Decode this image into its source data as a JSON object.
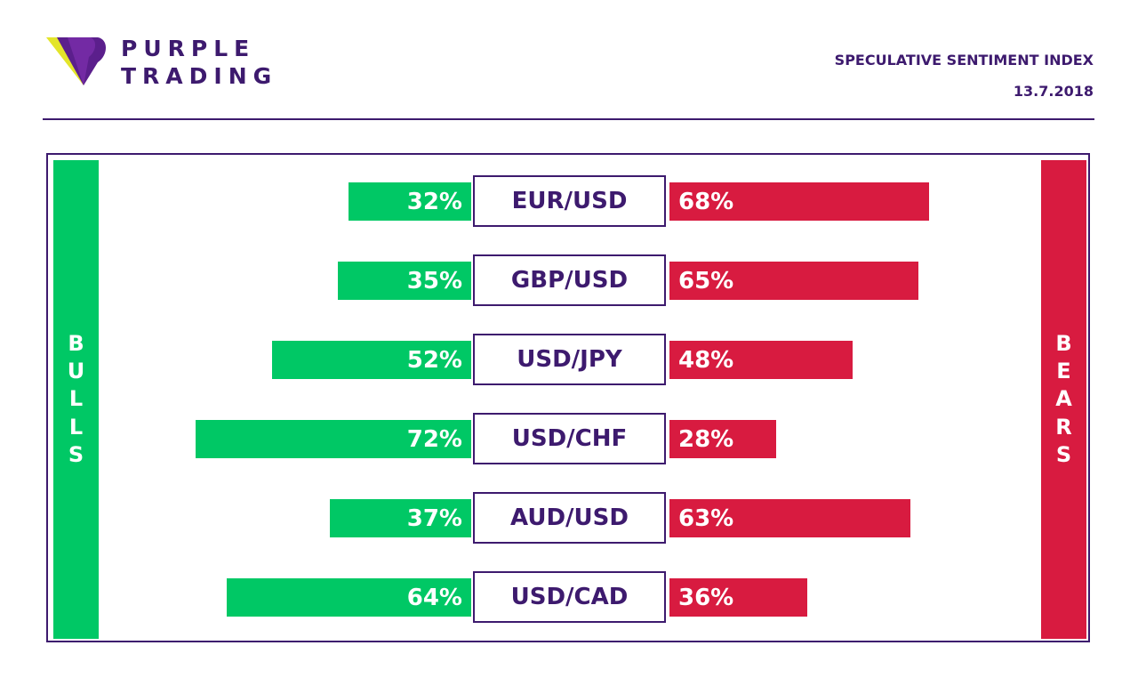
{
  "brand": {
    "line1": "PURPLE",
    "line2": "TRADING"
  },
  "header": {
    "title": "SPECULATIVE SENTIMENT INDEX",
    "date": "13.7.2018"
  },
  "labels": {
    "bulls": "BULLS",
    "bears": "BEARS"
  },
  "colors": {
    "purple": "#3d1a6e",
    "green": "#00c865",
    "red": "#d81b40",
    "yellow": "#e3e52a"
  },
  "chart_data": {
    "type": "bar",
    "title": "SPECULATIVE SENTIMENT INDEX",
    "categories": [
      "EUR/USD",
      "GBP/USD",
      "USD/JPY",
      "USD/CHF",
      "AUD/USD",
      "USD/CAD"
    ],
    "series": [
      {
        "name": "BULLS",
        "values": [
          32,
          35,
          52,
          72,
          37,
          64
        ]
      },
      {
        "name": "BEARS",
        "values": [
          68,
          65,
          48,
          28,
          63,
          36
        ]
      }
    ],
    "ylim": [
      0,
      100
    ]
  }
}
